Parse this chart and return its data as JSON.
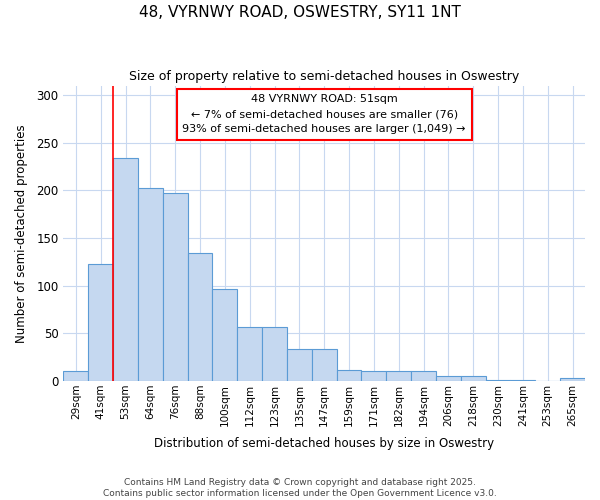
{
  "title": "48, VYRNWY ROAD, OSWESTRY, SY11 1NT",
  "subtitle": "Size of property relative to semi-detached houses in Oswestry",
  "xlabel": "Distribution of semi-detached houses by size in Oswestry",
  "ylabel": "Number of semi-detached properties",
  "categories": [
    "29sqm",
    "41sqm",
    "53sqm",
    "64sqm",
    "76sqm",
    "88sqm",
    "100sqm",
    "112sqm",
    "123sqm",
    "135sqm",
    "147sqm",
    "159sqm",
    "171sqm",
    "182sqm",
    "194sqm",
    "206sqm",
    "218sqm",
    "230sqm",
    "241sqm",
    "253sqm",
    "265sqm"
  ],
  "values": [
    10,
    123,
    234,
    202,
    197,
    134,
    96,
    57,
    57,
    34,
    34,
    12,
    10,
    11,
    11,
    5,
    5,
    1,
    1,
    0,
    3
  ],
  "bar_color": "#c5d8f0",
  "bar_edge_color": "#5b9bd5",
  "redline_x": 1.5,
  "annotation_text": "48 VYRNWY ROAD: 51sqm\n← 7% of semi-detached houses are smaller (76)\n93% of semi-detached houses are larger (1,049) →",
  "ylim": [
    0,
    310
  ],
  "yticks": [
    0,
    50,
    100,
    150,
    200,
    250,
    300
  ],
  "bg_color": "#ffffff",
  "grid_color": "#c8d8f0",
  "footer_line1": "Contains HM Land Registry data © Crown copyright and database right 2025.",
  "footer_line2": "Contains public sector information licensed under the Open Government Licence v3.0."
}
